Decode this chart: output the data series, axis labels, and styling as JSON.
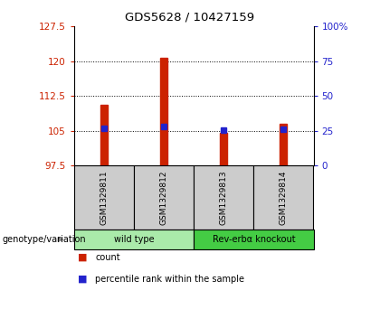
{
  "title": "GDS5628 / 10427159",
  "samples": [
    "GSM1329811",
    "GSM1329812",
    "GSM1329813",
    "GSM1329814"
  ],
  "bar_values": [
    110.5,
    120.7,
    104.6,
    106.5
  ],
  "percentile_values": [
    105.6,
    106.0,
    105.1,
    105.4
  ],
  "baseline": 97.5,
  "ylim_left": [
    97.5,
    127.5
  ],
  "ylim_right": [
    0,
    100
  ],
  "yticks_left": [
    97.5,
    105.0,
    112.5,
    120.0,
    127.5
  ],
  "yticks_right": [
    0,
    25,
    50,
    75,
    100
  ],
  "ytick_labels_left": [
    "97.5",
    "105",
    "112.5",
    "120",
    "127.5"
  ],
  "ytick_labels_right": [
    "0",
    "25",
    "50",
    "75",
    "100%"
  ],
  "bar_color": "#cc2200",
  "percentile_color": "#2222cc",
  "grid_color": "#000000",
  "groups": [
    {
      "label": "wild type",
      "indices": [
        0,
        1
      ],
      "color": "#aaeaaa"
    },
    {
      "label": "Rev-erbα knockout",
      "indices": [
        2,
        3
      ],
      "color": "#44cc44"
    }
  ],
  "genotype_label": "genotype/variation",
  "legend_count_label": "count",
  "legend_pct_label": "percentile rank within the sample",
  "bar_color_legend": "#cc2200",
  "pct_color_legend": "#2222cc",
  "left_axis_color": "#cc2200",
  "right_axis_color": "#2222cc",
  "bar_width": 0.12,
  "cell_bg": "#cccccc",
  "fig_bg": "#ffffff"
}
